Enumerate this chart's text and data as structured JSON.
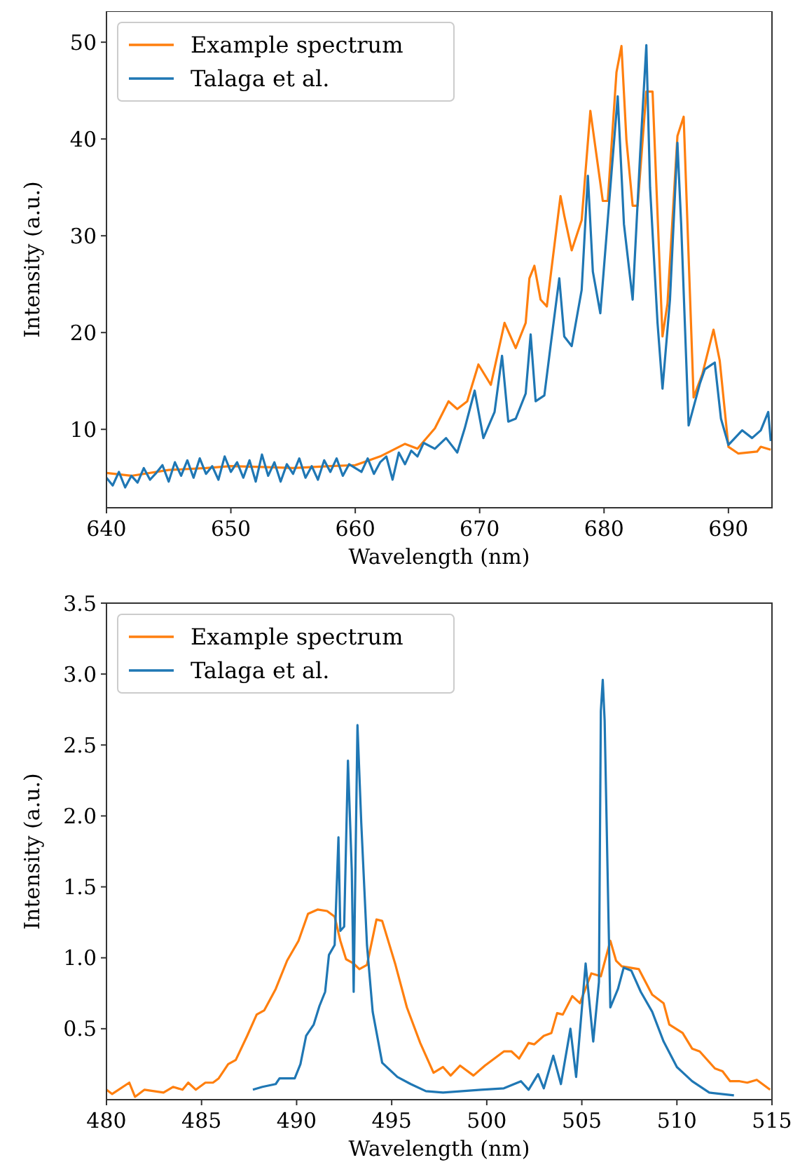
{
  "chart_data": [
    {
      "type": "line",
      "xlabel": "Wavelength (nm)",
      "ylabel": "Intensity (a.u.)",
      "xlim": [
        640,
        693.5
      ],
      "ylim": [
        1.9,
        53.2
      ],
      "xticks": [
        640,
        650,
        660,
        670,
        680,
        690
      ],
      "yticks": [
        10,
        20,
        30,
        40,
        50
      ],
      "legend": "top left",
      "grid": false,
      "series": [
        {
          "name": "Example spectrum",
          "color": "#ff7f0e",
          "x": [
            640,
            642,
            645,
            648,
            650,
            653,
            655,
            658,
            660,
            662,
            664,
            665,
            666.4,
            667.5,
            668.2,
            669,
            669.9,
            670.9,
            672,
            672.9,
            673.7,
            674,
            674.4,
            674.9,
            675.4,
            676.5,
            676.8,
            677.4,
            678.2,
            678.9,
            679.9,
            680.3,
            681,
            681.4,
            681.8,
            682.3,
            682.7,
            683.4,
            683.9,
            684.7,
            685.1,
            685.9,
            686.4,
            687.2,
            687.9,
            688.8,
            689.3,
            690,
            690.8,
            692.3,
            692.6,
            693.4
          ],
          "values": [
            5.5,
            5.2,
            5.8,
            6,
            6.2,
            6.1,
            6,
            6.2,
            6.3,
            7.2,
            8.5,
            8,
            10.1,
            12.9,
            12.1,
            12.9,
            16.7,
            14.6,
            21,
            18.4,
            21,
            25.6,
            26.9,
            23.4,
            22.7,
            34.1,
            32.1,
            28.5,
            31.6,
            42.9,
            33.6,
            33.6,
            46.9,
            49.6,
            39.9,
            33.1,
            33.1,
            44.9,
            44.9,
            19.6,
            23,
            40.3,
            42.3,
            13.3,
            15.7,
            20.3,
            17.1,
            8.2,
            7.5,
            7.7,
            8.2,
            7.9
          ]
        },
        {
          "name": "Talaga et al.",
          "color": "#1f77b4",
          "x": [
            640,
            640.5,
            641,
            641.5,
            642,
            642.5,
            643,
            643.5,
            644,
            644.5,
            645,
            645.5,
            646,
            646.5,
            647,
            647.5,
            648,
            648.5,
            649,
            649.5,
            650,
            650.5,
            651,
            651.5,
            652,
            652.5,
            653,
            653.5,
            654,
            654.5,
            655,
            655.5,
            656,
            656.5,
            657,
            657.5,
            658,
            658.5,
            659,
            659.5,
            660,
            660.5,
            661,
            661.5,
            662,
            662.5,
            663,
            663.5,
            664,
            664.5,
            665,
            665.5,
            666.4,
            667.3,
            668.2,
            668.8,
            669.6,
            670.3,
            671.2,
            671.8,
            672.3,
            672.9,
            673.7,
            674.1,
            674.5,
            675.2,
            675.7,
            676.4,
            676.8,
            677.4,
            678.2,
            678.7,
            679.1,
            679.7,
            680.6,
            681.1,
            681.6,
            682.3,
            682.9,
            683.4,
            683.7,
            684.3,
            684.7,
            685.3,
            685.9,
            686.2,
            686.8,
            687.7,
            688.1,
            688.9,
            689.4,
            690,
            691.1,
            691.9,
            692.6,
            693.2,
            693.4
          ],
          "values": [
            5,
            4.2,
            5.6,
            4,
            5.2,
            4.5,
            6,
            4.8,
            5.5,
            6.3,
            4.6,
            6.6,
            5.2,
            6.8,
            5,
            7,
            5.4,
            6.2,
            4.8,
            7.2,
            5.6,
            6.6,
            5,
            6.8,
            4.6,
            7.4,
            5.2,
            6.6,
            4.6,
            6.4,
            5.4,
            7,
            5,
            6.2,
            4.8,
            6.8,
            5.6,
            7,
            5.2,
            6.4,
            6,
            5.6,
            7,
            5.4,
            6.6,
            7.2,
            4.8,
            7.6,
            6.4,
            7.8,
            7.2,
            8.6,
            8,
            9.1,
            7.6,
            10.1,
            14,
            9.1,
            11.8,
            17.6,
            10.8,
            11.1,
            13.7,
            19.8,
            12.9,
            13.5,
            18.6,
            25.6,
            19.6,
            18.6,
            24.4,
            36.2,
            26.3,
            22,
            36.5,
            44.4,
            31.2,
            23.4,
            38.4,
            49.7,
            35,
            21,
            14.2,
            23.4,
            39.6,
            31.2,
            10.4,
            14.7,
            16.2,
            16.9,
            11.1,
            8.4,
            9.9,
            9.1,
            9.9,
            11.8,
            8.8
          ]
        }
      ]
    },
    {
      "type": "line",
      "xlabel": "Wavelength (nm)",
      "ylabel": "Intensity (a.u.)",
      "xlim": [
        480,
        515
      ],
      "ylim": [
        0,
        3.5
      ],
      "xticks": [
        480,
        485,
        490,
        495,
        500,
        505,
        510,
        515
      ],
      "yticks": [
        {
          "value": 0.5,
          "label": "0.5"
        },
        {
          "value": 1,
          "label": "1.0"
        },
        {
          "value": 1.5,
          "label": "1.5"
        },
        {
          "value": 2,
          "label": "2.0"
        },
        {
          "value": 2.5,
          "label": "2.5"
        },
        {
          "value": 3,
          "label": "3.0"
        },
        {
          "value": 3.5,
          "label": "3.5"
        }
      ],
      "legend": "top left",
      "grid": false,
      "series": [
        {
          "name": "Example spectrum",
          "color": "#ff7f0e",
          "x": [
            480,
            480.3,
            481.2,
            481.5,
            482,
            483,
            483.5,
            484,
            484.3,
            484.7,
            485.2,
            485.6,
            485.9,
            486.4,
            486.8,
            487.4,
            487.9,
            488.3,
            488.9,
            489.5,
            490.1,
            490.6,
            491.1,
            491.6,
            492,
            492.3,
            492.6,
            493,
            493.3,
            493.7,
            494.2,
            494.5,
            495.2,
            495.8,
            496.5,
            497.2,
            497.7,
            498.1,
            498.6,
            499.3,
            499.9,
            500.9,
            501.3,
            501.7,
            502.2,
            502.5,
            503,
            503.4,
            503.7,
            504,
            504.5,
            504.9,
            505.5,
            506,
            506.5,
            506.8,
            507.1,
            508,
            508.7,
            509.3,
            509.6,
            510.3,
            510.8,
            511.2,
            512,
            512.4,
            512.8,
            513.3,
            513.7,
            514.2,
            514.9
          ],
          "values": [
            0.07,
            0.04,
            0.12,
            0.02,
            0.07,
            0.05,
            0.09,
            0.07,
            0.12,
            0.07,
            0.12,
            0.12,
            0.15,
            0.25,
            0.28,
            0.45,
            0.6,
            0.63,
            0.78,
            0.98,
            1.12,
            1.31,
            1.34,
            1.33,
            1.29,
            1.12,
            0.99,
            0.96,
            0.92,
            0.95,
            1.27,
            1.26,
            0.95,
            0.65,
            0.4,
            0.19,
            0.23,
            0.17,
            0.24,
            0.17,
            0.24,
            0.34,
            0.34,
            0.29,
            0.4,
            0.39,
            0.45,
            0.47,
            0.61,
            0.6,
            0.73,
            0.68,
            0.89,
            0.87,
            1.12,
            0.98,
            0.94,
            0.92,
            0.74,
            0.68,
            0.53,
            0.47,
            0.36,
            0.34,
            0.22,
            0.2,
            0.13,
            0.13,
            0.12,
            0.14,
            0.07
          ]
        },
        {
          "name": "Talaga et al.",
          "color": "#1f77b4",
          "x": [
            487.7,
            488.2,
            488.9,
            489.1,
            489.9,
            490.2,
            490.5,
            490.9,
            491.2,
            491.5,
            491.7,
            492,
            492.2,
            492.3,
            492.5,
            492.7,
            492.9,
            493,
            493.2,
            493.4,
            493.7,
            494,
            494.5,
            495.3,
            496,
            496.8,
            497.7,
            498.7,
            499.7,
            500.9,
            501.8,
            502.2,
            502.7,
            503,
            503.5,
            503.9,
            504.4,
            504.7,
            505.2,
            505.6,
            505.9,
            506,
            506.1,
            506.2,
            506.4,
            506.5,
            506.9,
            507.2,
            507.6,
            508.1,
            508.7,
            509.3,
            510,
            510.8,
            511.7,
            513
          ],
          "values": [
            0.07,
            0.09,
            0.11,
            0.15,
            0.15,
            0.25,
            0.45,
            0.53,
            0.66,
            0.76,
            1.02,
            1.09,
            1.85,
            1.19,
            1.22,
            2.39,
            1.62,
            0.76,
            2.64,
            1.95,
            1.09,
            0.62,
            0.26,
            0.16,
            0.11,
            0.06,
            0.05,
            0.06,
            0.07,
            0.08,
            0.13,
            0.07,
            0.18,
            0.08,
            0.31,
            0.11,
            0.5,
            0.16,
            0.96,
            0.41,
            0.83,
            2.74,
            2.96,
            2.67,
            1.29,
            0.65,
            0.78,
            0.93,
            0.91,
            0.76,
            0.62,
            0.41,
            0.23,
            0.13,
            0.05,
            0.03
          ]
        }
      ]
    }
  ]
}
